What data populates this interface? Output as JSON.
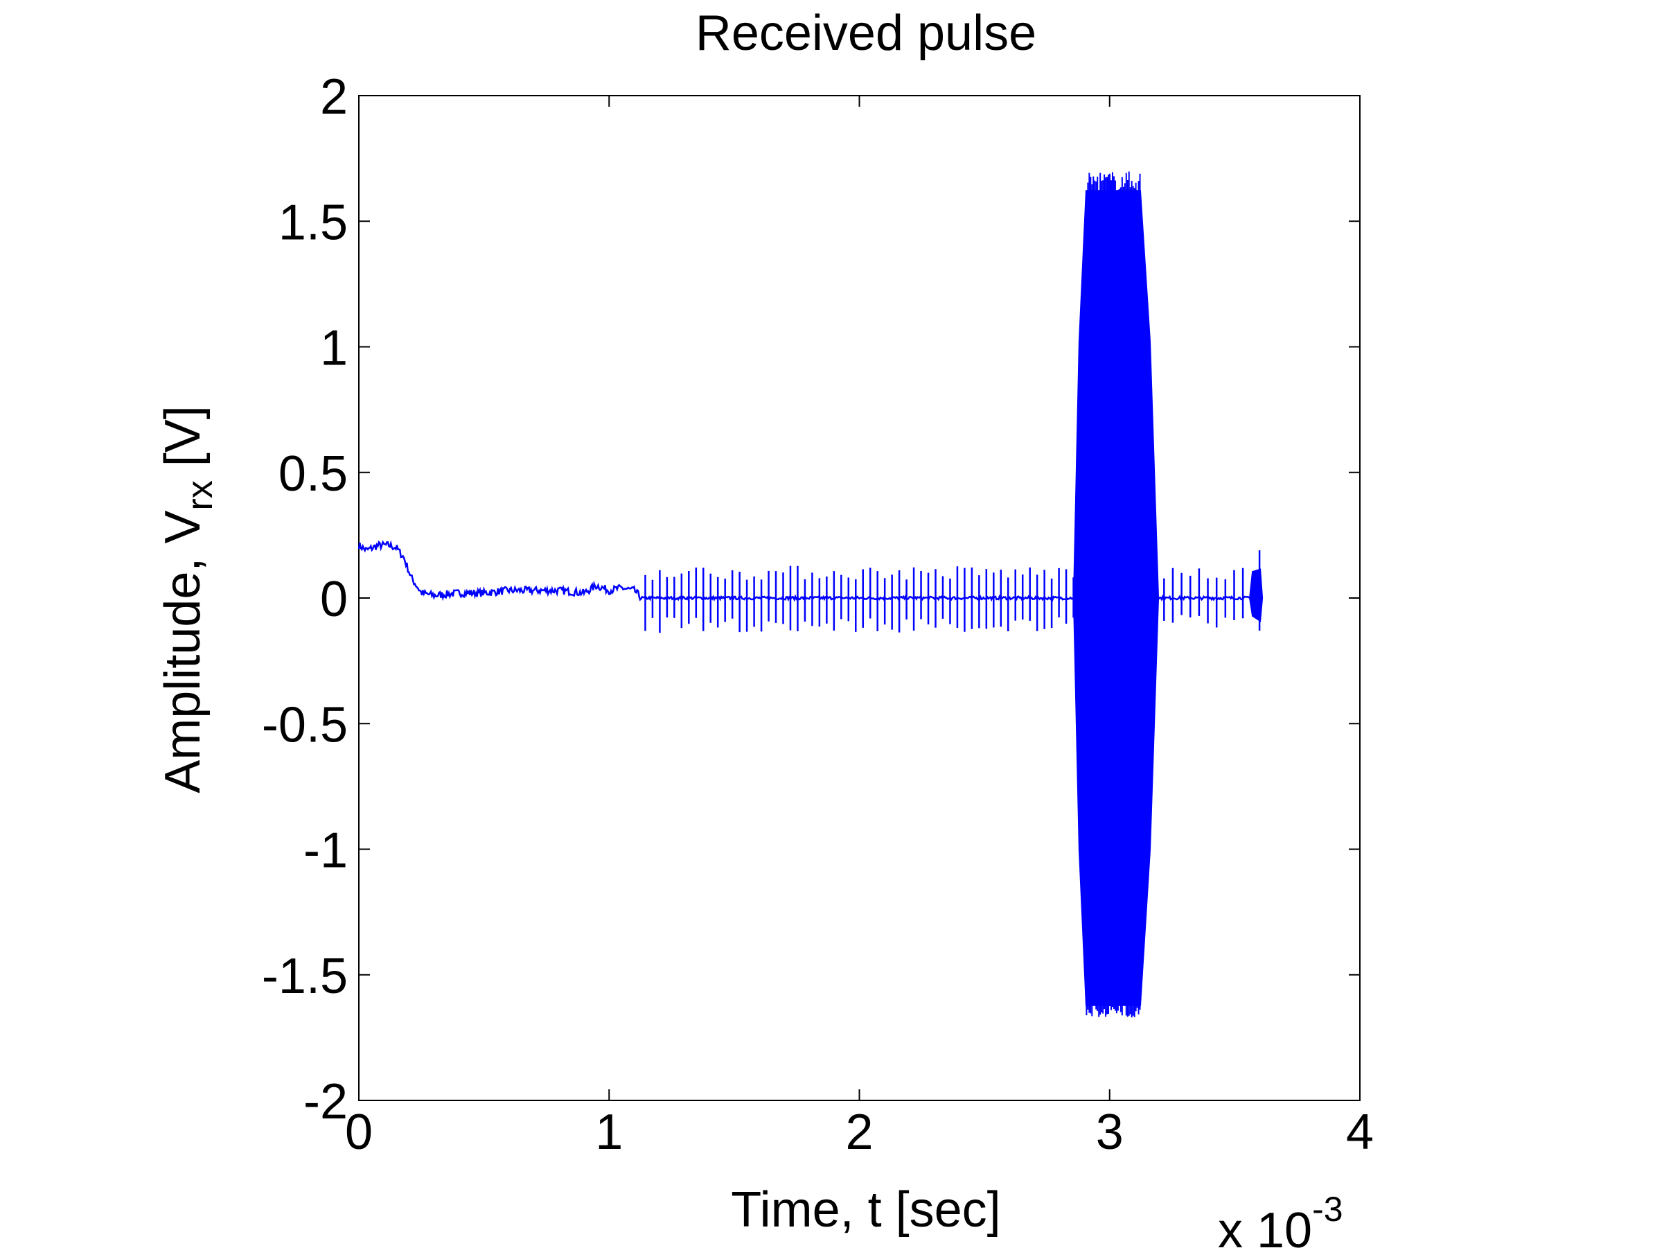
{
  "chart_data": {
    "type": "line",
    "title": "Received pulse",
    "xlabel": "Time, t [sec]",
    "ylabel": {
      "prefix": "Amplitude, V",
      "subscript": "rx",
      "suffix": " [V]"
    },
    "x_multiplier": {
      "base": "x 10",
      "exponent": "-3"
    },
    "xlim": [
      0,
      4
    ],
    "ylim": [
      -2,
      2
    ],
    "x_unit_scale": 0.001,
    "xticks": [
      0,
      1,
      2,
      3,
      4
    ],
    "xtick_labels": [
      "0",
      "1",
      "2",
      "3",
      "4"
    ],
    "yticks": [
      2,
      1.5,
      1,
      0.5,
      0,
      -0.5,
      -1,
      -1.5,
      -2
    ],
    "ytick_labels": [
      "2",
      "1.5",
      "1",
      "0.5",
      "0",
      "-0.5",
      "-1",
      "-1.5",
      "-2"
    ],
    "grid": false,
    "line_color": "#0000ff",
    "series": [
      {
        "baseline_x": [
          0.0,
          0.03,
          0.08,
          0.12,
          0.15,
          0.18,
          0.21,
          0.25,
          0.3,
          0.4,
          0.5,
          0.6,
          0.7,
          0.8,
          0.9,
          0.95,
          1.0,
          1.05,
          1.1,
          1.13,
          1.2,
          2.0,
          2.8,
          3.6
        ],
        "baseline_y": [
          0.21,
          0.19,
          0.21,
          0.21,
          0.2,
          0.16,
          0.08,
          0.02,
          0.01,
          0.02,
          0.02,
          0.03,
          0.03,
          0.03,
          0.02,
          0.05,
          0.03,
          0.04,
          0.03,
          0.0,
          0.0,
          0.0,
          0.0,
          0.0
        ],
        "spike_region_1": {
          "x_start": 1.13,
          "x_end": 2.87,
          "count": 60,
          "max": 0.13,
          "min": -0.14
        },
        "burst": {
          "x_start": 2.88,
          "x_end": 3.16,
          "max": 1.7,
          "min": -1.67
        },
        "spike_region_2": {
          "x_start": 3.2,
          "x_end": 3.55,
          "count": 10,
          "max": 0.12,
          "min": -0.12
        },
        "tail_burst": {
          "x_start": 3.56,
          "x_end": 3.61,
          "max": 0.19,
          "min": -0.13
        }
      }
    ]
  }
}
